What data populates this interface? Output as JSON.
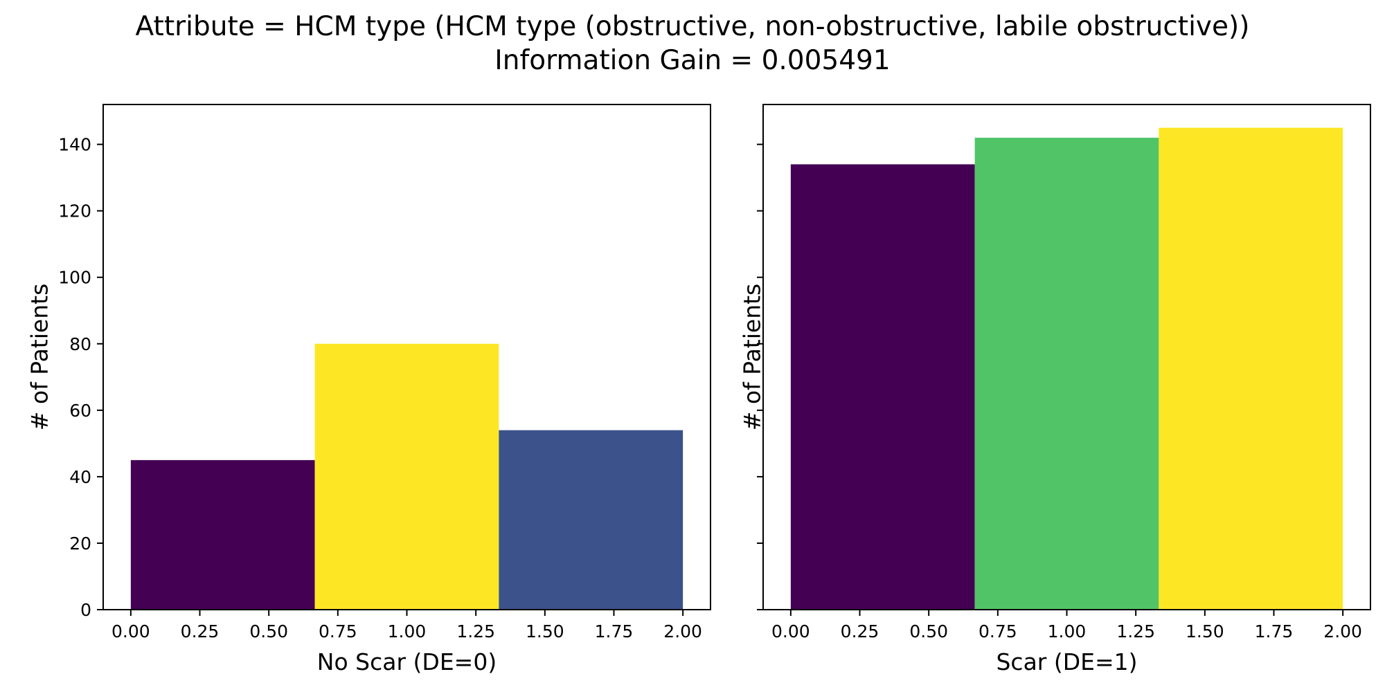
{
  "chart_data": {
    "title": "Attribute = HCM type (HCM type (obstructive, non-obstructive, labile obstructive))",
    "subtitle": "Information Gain = 0.005491",
    "panels": [
      {
        "type": "bar",
        "xlabel": "No Scar (DE=0)",
        "ylabel": "# of Patients",
        "xlim": [
          -0.1,
          2.1
        ],
        "ylim": [
          0,
          152
        ],
        "xticks": [
          "0.00",
          "0.25",
          "0.50",
          "0.75",
          "1.00",
          "1.25",
          "1.50",
          "1.75",
          "2.00"
        ],
        "yticks": [
          "0",
          "20",
          "40",
          "60",
          "80",
          "100",
          "120",
          "140"
        ],
        "bars": [
          {
            "x0": 0.0,
            "x1": 0.6667,
            "value": 45,
            "color": "#440154"
          },
          {
            "x0": 0.6667,
            "x1": 1.3333,
            "value": 80,
            "color": "#fde725"
          },
          {
            "x0": 1.3333,
            "x1": 2.0,
            "value": 54,
            "color": "#3b528b"
          }
        ]
      },
      {
        "type": "bar",
        "xlabel": "Scar (DE=1)",
        "ylabel": "# of Patients",
        "xlim": [
          -0.1,
          2.1
        ],
        "ylim": [
          0,
          152
        ],
        "xticks": [
          "0.00",
          "0.25",
          "0.50",
          "0.75",
          "1.00",
          "1.25",
          "1.50",
          "1.75",
          "2.00"
        ],
        "yticks": [],
        "bars": [
          {
            "x0": 0.0,
            "x1": 0.6667,
            "value": 134,
            "color": "#440154"
          },
          {
            "x0": 0.6667,
            "x1": 1.3333,
            "value": 142,
            "color": "#51c468"
          },
          {
            "x0": 1.3333,
            "x1": 2.0,
            "value": 145,
            "color": "#fde725"
          }
        ]
      }
    ]
  }
}
